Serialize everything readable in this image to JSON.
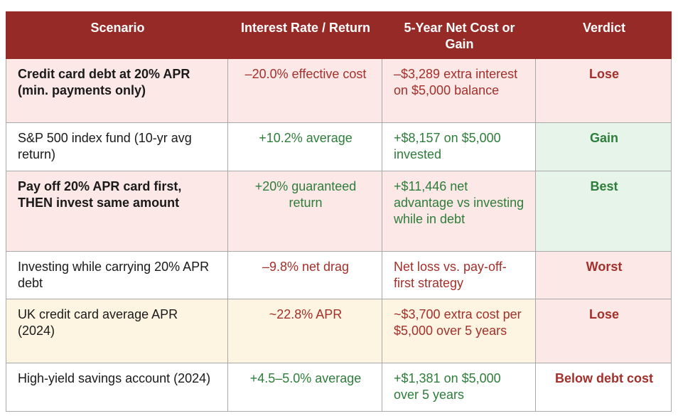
{
  "table": {
    "header": [
      "Scenario",
      "Interest Rate / Return",
      "5-Year Net Cost or Gain",
      "Verdict"
    ],
    "rows": [
      [
        "Credit card debt at 20% APR (min. payments only)",
        "–20.0% effective cost",
        "–$3,289 extra interest on $5,000 balance",
        "Lose"
      ],
      [
        "S&P 500 index fund (10-yr avg return)",
        "+10.2% average",
        "+$8,157 on $5,000 invested",
        "Gain"
      ],
      [
        "Pay off 20% APR card first, THEN invest same amount",
        "+20% guaranteed return",
        "+$11,446 net advantage vs investing while in debt",
        "Best"
      ],
      [
        "Investing while carrying 20% APR debt",
        "–9.8% net drag",
        "Net loss vs. pay-off-first strategy",
        "Worst"
      ],
      [
        "UK credit card average APR (2024)",
        "~22.8% APR",
        "~$3,700 extra cost per $5,000 over 5 years",
        "Lose"
      ],
      [
        "High-yield savings account (2024)",
        "+4.5–5.0% average",
        "+$1,381 on $5,000 over 5 years",
        "Below debt cost"
      ]
    ]
  }
}
